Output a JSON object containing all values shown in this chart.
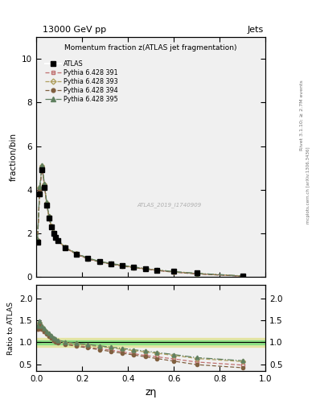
{
  "title_top": "13000 GeV pp",
  "title_right": "Jets",
  "plot_title": "Momentum fraction z(ATLAS jet fragmentation)",
  "xlabel": "zη",
  "ylabel_main": "fraction/bin",
  "ylabel_ratio": "Ratio to ATLAS",
  "right_label_main": "Rivet 3.1.10; ≥ 2.7M events",
  "right_label_sub": "mcplots.cern.ch [arXiv:1306.3436]",
  "watermark": "ATLAS_2019_I1740909",
  "atlas_label": "ATLAS",
  "legend_entries": [
    "ATLAS",
    "Pythia 6.428 391",
    "Pythia 6.428 393",
    "Pythia 6.428 394",
    "Pythia 6.428 395"
  ],
  "ylim_main": [
    0,
    11
  ],
  "ylim_ratio": [
    0.35,
    2.3
  ],
  "yticks_main": [
    0,
    2,
    4,
    6,
    8,
    10
  ],
  "yticks_ratio": [
    0.5,
    1.0,
    1.5,
    2.0
  ],
  "atlas_x": [
    0.005,
    0.015,
    0.025,
    0.035,
    0.045,
    0.055,
    0.065,
    0.075,
    0.085,
    0.095,
    0.125,
    0.175,
    0.225,
    0.275,
    0.325,
    0.375,
    0.425,
    0.475,
    0.525,
    0.6,
    0.7,
    0.9
  ],
  "atlas_y": [
    1.6,
    3.8,
    4.9,
    4.1,
    3.3,
    2.7,
    2.3,
    2.0,
    1.8,
    1.65,
    1.35,
    1.05,
    0.85,
    0.7,
    0.6,
    0.52,
    0.45,
    0.38,
    0.32,
    0.25,
    0.18,
    0.05
  ],
  "p391_x": [
    0.005,
    0.015,
    0.025,
    0.035,
    0.045,
    0.055,
    0.065,
    0.075,
    0.085,
    0.095,
    0.125,
    0.175,
    0.225,
    0.275,
    0.325,
    0.375,
    0.425,
    0.475,
    0.525,
    0.6,
    0.7,
    0.9
  ],
  "p391_y": [
    1.65,
    4.0,
    5.0,
    4.2,
    3.35,
    2.75,
    2.3,
    2.0,
    1.8,
    1.65,
    1.35,
    1.05,
    0.84,
    0.7,
    0.6,
    0.52,
    0.44,
    0.37,
    0.31,
    0.23,
    0.15,
    0.04
  ],
  "p393_x": [
    0.005,
    0.015,
    0.025,
    0.035,
    0.045,
    0.055,
    0.065,
    0.075,
    0.085,
    0.095,
    0.125,
    0.175,
    0.225,
    0.275,
    0.325,
    0.375,
    0.425,
    0.475,
    0.525,
    0.6,
    0.7,
    0.9
  ],
  "p393_y": [
    1.65,
    4.1,
    5.1,
    4.25,
    3.4,
    2.78,
    2.32,
    2.02,
    1.82,
    1.67,
    1.37,
    1.07,
    0.86,
    0.71,
    0.61,
    0.53,
    0.45,
    0.38,
    0.32,
    0.24,
    0.16,
    0.045
  ],
  "p394_x": [
    0.005,
    0.015,
    0.025,
    0.035,
    0.045,
    0.055,
    0.065,
    0.075,
    0.085,
    0.095,
    0.125,
    0.175,
    0.225,
    0.275,
    0.325,
    0.375,
    0.425,
    0.475,
    0.525,
    0.6,
    0.7,
    0.9
  ],
  "p394_y": [
    1.65,
    4.0,
    5.05,
    4.22,
    3.37,
    2.75,
    2.3,
    2.0,
    1.8,
    1.65,
    1.34,
    1.04,
    0.83,
    0.69,
    0.59,
    0.5,
    0.43,
    0.36,
    0.3,
    0.22,
    0.14,
    0.035
  ],
  "p395_x": [
    0.005,
    0.015,
    0.025,
    0.035,
    0.045,
    0.055,
    0.065,
    0.075,
    0.085,
    0.095,
    0.125,
    0.175,
    0.225,
    0.275,
    0.325,
    0.375,
    0.425,
    0.475,
    0.525,
    0.6,
    0.7,
    0.9
  ],
  "p395_y": [
    1.7,
    4.15,
    5.15,
    4.3,
    3.45,
    2.82,
    2.35,
    2.05,
    1.85,
    1.7,
    1.38,
    1.08,
    0.87,
    0.72,
    0.62,
    0.54,
    0.46,
    0.39,
    0.33,
    0.25,
    0.17,
    0.05
  ],
  "ratio_p391": [
    1.3,
    1.4,
    1.3,
    1.25,
    1.2,
    1.15,
    1.1,
    1.05,
    1.02,
    1.0,
    0.97,
    0.93,
    0.89,
    0.85,
    0.82,
    0.78,
    0.74,
    0.7,
    0.67,
    0.62,
    0.55,
    0.48
  ],
  "ratio_p393": [
    1.35,
    1.45,
    1.35,
    1.28,
    1.22,
    1.17,
    1.12,
    1.07,
    1.04,
    1.02,
    0.99,
    0.96,
    0.93,
    0.9,
    0.87,
    0.84,
    0.81,
    0.78,
    0.75,
    0.7,
    0.63,
    0.56
  ],
  "ratio_p394": [
    1.3,
    1.4,
    1.3,
    1.25,
    1.19,
    1.14,
    1.09,
    1.04,
    1.01,
    0.99,
    0.95,
    0.91,
    0.87,
    0.83,
    0.79,
    0.75,
    0.71,
    0.67,
    0.63,
    0.57,
    0.49,
    0.42
  ],
  "ratio_p395": [
    1.38,
    1.48,
    1.38,
    1.31,
    1.25,
    1.2,
    1.15,
    1.1,
    1.07,
    1.05,
    1.01,
    0.98,
    0.95,
    0.92,
    0.89,
    0.86,
    0.83,
    0.8,
    0.77,
    0.72,
    0.65,
    0.58
  ],
  "color_391": "#c07070",
  "color_393": "#b0a060",
  "color_394": "#806040",
  "color_395": "#608060",
  "color_atlas": "black",
  "band_green": "#80e080",
  "band_yellow": "#e0e080",
  "bg_color": "#f0f0f0"
}
